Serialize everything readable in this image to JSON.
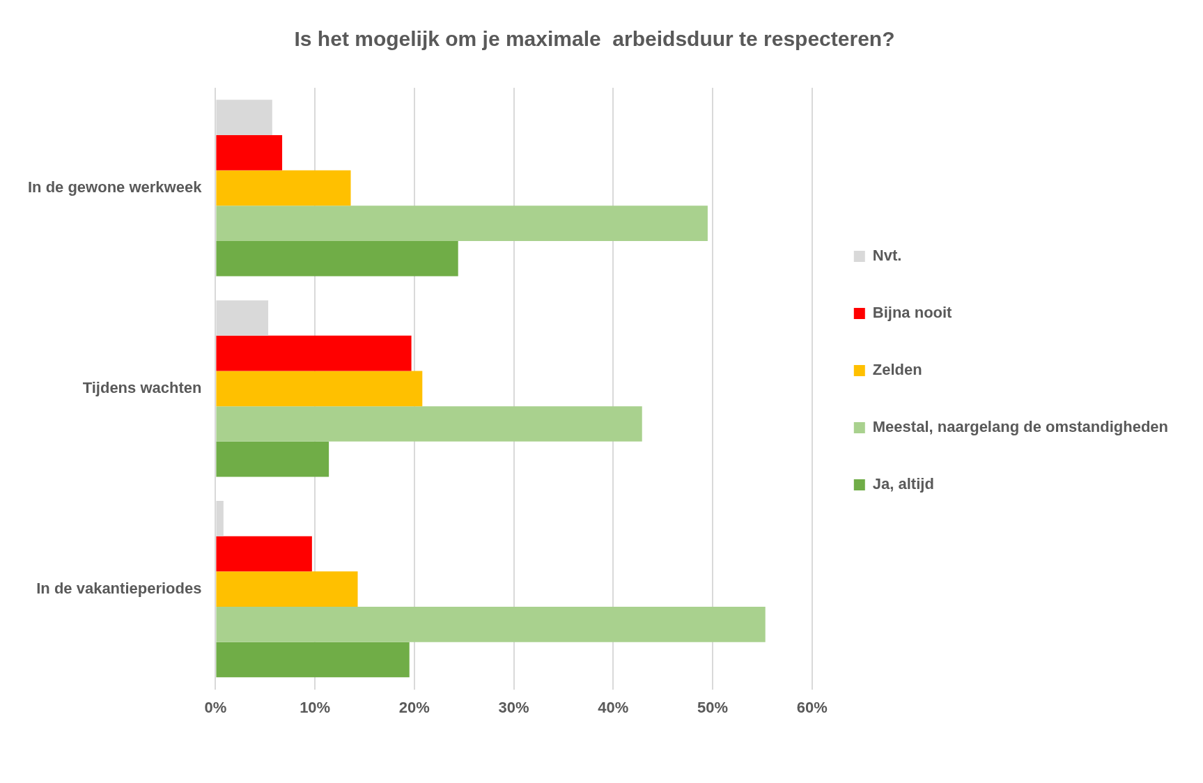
{
  "chart_data": {
    "type": "bar",
    "orientation": "horizontal",
    "title": "Is het mogelijk om je maximale  arbeidsduur te respecteren?",
    "categories": [
      "In de gewone werkweek",
      "Tijdens wachten",
      "In de vakantieperiodes"
    ],
    "series": [
      {
        "name": "Nvt.",
        "color": "#d9d9d9",
        "values": [
          5.7,
          5.3,
          0.8
        ]
      },
      {
        "name": "Bijna nooit",
        "color": "#ff0000",
        "values": [
          6.7,
          19.7,
          9.7
        ]
      },
      {
        "name": "Zelden",
        "color": "#ffc000",
        "values": [
          13.6,
          20.8,
          14.3
        ]
      },
      {
        "name": "Meestal, naargelang de omstandigheden",
        "color": "#a9d18e",
        "values": [
          49.5,
          42.9,
          55.3
        ]
      },
      {
        "name": "Ja, altijd",
        "color": "#70ad47",
        "values": [
          24.4,
          11.4,
          19.5
        ]
      }
    ],
    "xlim": [
      0,
      60
    ],
    "xticks": [
      {
        "value": 0,
        "label": "0%"
      },
      {
        "value": 10,
        "label": "10%"
      },
      {
        "value": 20,
        "label": "20%"
      },
      {
        "value": 30,
        "label": "30%"
      },
      {
        "value": 40,
        "label": "40%"
      },
      {
        "value": 50,
        "label": "50%"
      },
      {
        "value": 60,
        "label": "60%"
      }
    ],
    "grid": "x",
    "legend": "right"
  }
}
